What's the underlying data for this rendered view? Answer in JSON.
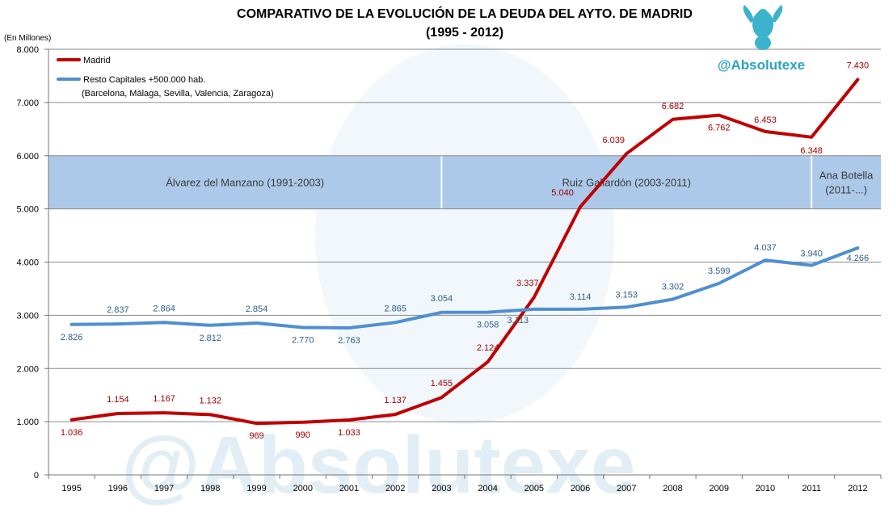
{
  "chart_data": {
    "type": "line",
    "title_line1": "COMPARATIVO DE LA EVOLUCIÓN DE LA DEUDA DEL AYTO. DE MADRID",
    "title_line2": "(1995 - 2012)",
    "ylabel": "(En Millones)",
    "ylim": [
      0,
      8000
    ],
    "yticks": [
      0,
      1000,
      2000,
      3000,
      4000,
      5000,
      6000,
      7000,
      8000
    ],
    "ytick_labels": [
      "0",
      "1.000",
      "2.000",
      "3.000",
      "4.000",
      "5.000",
      "6.000",
      "7.000",
      "8.000"
    ],
    "categories": [
      "1995",
      "1996",
      "1997",
      "1998",
      "1999",
      "2000",
      "2001",
      "2002",
      "2003",
      "2004",
      "2005",
      "2006",
      "2007",
      "2008",
      "2009",
      "2010",
      "2011",
      "2012"
    ],
    "series": [
      {
        "name": "Madrid",
        "color": "#c00000",
        "values": [
          1036,
          1154,
          1167,
          1132,
          969,
          990,
          1033,
          1137,
          1455,
          2124,
          3337,
          5040,
          6039,
          6682,
          6762,
          6453,
          6348,
          7430
        ],
        "labels": [
          "1.036",
          "1.154",
          "1.167",
          "1.132",
          "969",
          "990",
          "1.033",
          "1.137",
          "1.455",
          "2.124",
          "3.337",
          "5.040",
          "6.039",
          "6.682",
          "6.762",
          "6.453",
          "6.348",
          "7.430"
        ]
      },
      {
        "name": "Resto Capitales +500.000 hab.",
        "name_line2": "(Barcelona, Málaga,  Sevilla, Valencia, Zaragoza)",
        "color": "#4f8fd0",
        "values": [
          2826,
          2837,
          2864,
          2812,
          2854,
          2770,
          2763,
          2865,
          3054,
          3058,
          3113,
          3114,
          3153,
          3302,
          3599,
          4037,
          3940,
          4266
        ],
        "labels": [
          "2.826",
          "2.837",
          "2.864",
          "2.812",
          "2.854",
          "2.770",
          "2.763",
          "2.865",
          "3.054",
          "3.058",
          "3.113",
          "3.114",
          "3.153",
          "3.302",
          "3.599",
          "4.037",
          "3.940",
          "4.266"
        ]
      }
    ],
    "periods": [
      {
        "label": "Álvarez del Manzano (1991-2003)",
        "from_year": 1995,
        "to_year": 2003
      },
      {
        "label": "Ruiz Gallardón (2003-2011)",
        "from_year": 2003,
        "to_year": 2011
      },
      {
        "label_line1": "Ana Botella",
        "label_line2": "(2011-...)",
        "from_year": 2011,
        "to_year": 2012
      }
    ],
    "period_band_range": [
      5000,
      6000
    ],
    "period_band_color": "#a6c4e8"
  },
  "brand": {
    "handle": "@Absolutexe",
    "watermark": "@Absolutexe",
    "color": "#2ca3c0"
  }
}
